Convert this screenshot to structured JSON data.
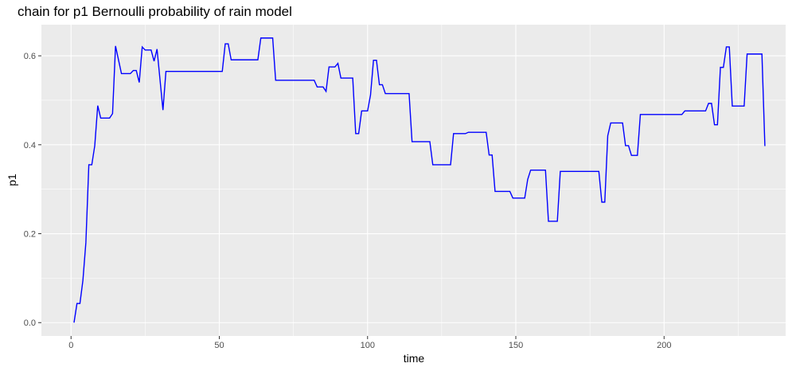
{
  "chart_data": {
    "type": "line",
    "title": "chain for p1 Bernoulli probability of rain model",
    "xlabel": "time",
    "ylabel": "p1",
    "xlim": [
      -10,
      241
    ],
    "ylim": [
      -0.03,
      0.67
    ],
    "x_ticks": [
      0,
      50,
      100,
      150,
      200
    ],
    "y_ticks": [
      0.0,
      0.2,
      0.4,
      0.6
    ],
    "x_tick_labels": [
      "0",
      "50",
      "100",
      "150",
      "200"
    ],
    "y_tick_labels": [
      "0.0",
      "0.2",
      "0.4",
      "0.6"
    ],
    "grid": true,
    "legend": "none",
    "colors": {
      "panel": "#EBEBEB",
      "grid": "#FFFFFF",
      "line": "#0000FF",
      "ticks": "#4D4D4D"
    },
    "series": [
      {
        "color": "#0000FF",
        "points": [
          [
            1,
            0.0
          ],
          [
            2,
            0.043
          ],
          [
            3,
            0.043
          ],
          [
            4,
            0.095
          ],
          [
            5,
            0.18
          ],
          [
            6,
            0.355
          ],
          [
            7,
            0.355
          ],
          [
            8,
            0.398
          ],
          [
            9,
            0.488
          ],
          [
            10,
            0.46
          ],
          [
            13,
            0.46
          ],
          [
            14,
            0.47
          ],
          [
            15,
            0.622
          ],
          [
            17,
            0.56
          ],
          [
            20,
            0.56
          ],
          [
            21,
            0.567
          ],
          [
            22,
            0.567
          ],
          [
            23,
            0.54
          ],
          [
            24,
            0.62
          ],
          [
            25,
            0.613
          ],
          [
            27,
            0.613
          ],
          [
            28,
            0.588
          ],
          [
            29,
            0.615
          ],
          [
            31,
            0.478
          ],
          [
            32,
            0.565
          ],
          [
            51,
            0.565
          ],
          [
            52,
            0.627
          ],
          [
            53,
            0.627
          ],
          [
            54,
            0.591
          ],
          [
            63,
            0.591
          ],
          [
            64,
            0.64
          ],
          [
            68,
            0.64
          ],
          [
            69,
            0.545
          ],
          [
            82,
            0.545
          ],
          [
            83,
            0.53
          ],
          [
            85,
            0.53
          ],
          [
            86,
            0.52
          ],
          [
            87,
            0.575
          ],
          [
            89,
            0.575
          ],
          [
            90,
            0.583
          ],
          [
            91,
            0.55
          ],
          [
            95,
            0.55
          ],
          [
            96,
            0.425
          ],
          [
            97,
            0.425
          ],
          [
            98,
            0.476
          ],
          [
            100,
            0.476
          ],
          [
            101,
            0.512
          ],
          [
            102,
            0.59
          ],
          [
            103,
            0.59
          ],
          [
            104,
            0.535
          ],
          [
            105,
            0.535
          ],
          [
            106,
            0.515
          ],
          [
            114,
            0.515
          ],
          [
            115,
            0.407
          ],
          [
            121,
            0.407
          ],
          [
            122,
            0.355
          ],
          [
            128,
            0.355
          ],
          [
            129,
            0.425
          ],
          [
            133,
            0.425
          ],
          [
            134,
            0.428
          ],
          [
            140,
            0.428
          ],
          [
            141,
            0.377
          ],
          [
            142,
            0.377
          ],
          [
            143,
            0.295
          ],
          [
            148,
            0.295
          ],
          [
            149,
            0.28
          ],
          [
            153,
            0.28
          ],
          [
            154,
            0.322
          ],
          [
            155,
            0.343
          ],
          [
            160,
            0.343
          ],
          [
            161,
            0.228
          ],
          [
            164,
            0.228
          ],
          [
            165,
            0.34
          ],
          [
            178,
            0.34
          ],
          [
            179,
            0.271
          ],
          [
            180,
            0.271
          ],
          [
            181,
            0.42
          ],
          [
            182,
            0.449
          ],
          [
            186,
            0.449
          ],
          [
            187,
            0.398
          ],
          [
            188,
            0.398
          ],
          [
            189,
            0.376
          ],
          [
            191,
            0.376
          ],
          [
            192,
            0.468
          ],
          [
            206,
            0.468
          ],
          [
            207,
            0.476
          ],
          [
            214,
            0.476
          ],
          [
            215,
            0.493
          ],
          [
            216,
            0.493
          ],
          [
            217,
            0.445
          ],
          [
            218,
            0.445
          ],
          [
            219,
            0.574
          ],
          [
            220,
            0.574
          ],
          [
            221,
            0.62
          ],
          [
            222,
            0.62
          ],
          [
            223,
            0.487
          ],
          [
            227,
            0.487
          ],
          [
            228,
            0.604
          ],
          [
            233,
            0.604
          ],
          [
            234,
            0.397
          ]
        ]
      }
    ]
  }
}
